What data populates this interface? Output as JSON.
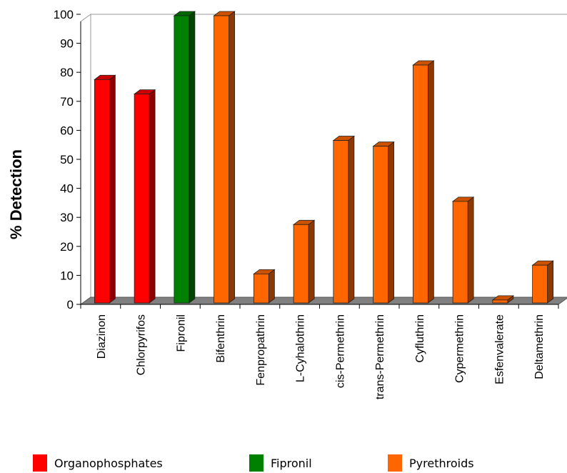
{
  "chart_data": {
    "type": "bar",
    "ylabel": "% Detection",
    "ylim": [
      0,
      100
    ],
    "yticks": [
      0,
      10,
      20,
      30,
      40,
      50,
      60,
      70,
      80,
      90,
      100
    ],
    "categories": [
      "Diazinon",
      "Chlorpyrifos",
      "Fipronil",
      "Bifenthrin",
      "Fenpropathrin",
      "L-Cyhalothrin",
      "cis-Permethrin",
      "trans-Permethrin",
      "Cyfluthrin",
      "Cypermethrin",
      "Esfenvalerate",
      "Deltamethrin"
    ],
    "values": [
      78,
      73,
      100,
      100,
      11,
      28,
      57,
      55,
      83,
      36,
      2,
      14
    ],
    "groups": [
      "Organophosphates",
      "Organophosphates",
      "Fipronil",
      "Pyrethroids",
      "Pyrethroids",
      "Pyrethroids",
      "Pyrethroids",
      "Pyrethroids",
      "Pyrethroids",
      "Pyrethroids",
      "Pyrethroids",
      "Pyrethroids"
    ],
    "legend": [
      {
        "name": "Organophosphates",
        "color": "#ff0000"
      },
      {
        "name": "Fipronil",
        "color": "#008000"
      },
      {
        "name": "Pyrethroids",
        "color": "#ff6600"
      }
    ],
    "legend_position": "bottom",
    "style": "3d-bars"
  }
}
